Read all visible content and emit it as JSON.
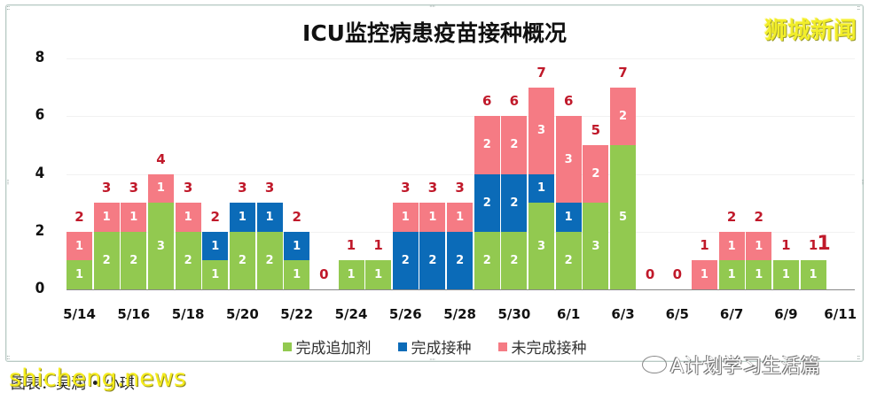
{
  "header": {
    "title": "ICU监控病患疫苗接种概况",
    "brand": "狮城新闻"
  },
  "legend": [
    {
      "label": "完成追加剂",
      "color": "#92c950"
    },
    {
      "label": "完成接种",
      "color": "#0b6bb8"
    },
    {
      "label": "未完成接种",
      "color": "#f57b84"
    }
  ],
  "footer": {
    "source": "图表：吴润 • 小琪",
    "watermark": "shicheng.news",
    "account": "A计划学习生活篇"
  },
  "colors": {
    "booster": "#92c950",
    "full": "#0b6bb8",
    "incomplete": "#f57b84",
    "total_label": "#c0192a"
  },
  "chart_data": {
    "type": "bar",
    "stacked": true,
    "title": "ICU监控病患疫苗接种概况",
    "xlabel": "",
    "ylabel": "",
    "ylim": [
      0,
      8
    ],
    "yticks": [
      0,
      2,
      4,
      6,
      8
    ],
    "xtick_labels": [
      "5/14",
      "5/16",
      "5/18",
      "5/20",
      "5/22",
      "5/24",
      "5/26",
      "5/28",
      "5/30",
      "6/1",
      "6/3",
      "6/5",
      "6/7",
      "6/9",
      "6/11"
    ],
    "legend_position": "bottom",
    "grid": true,
    "categories": [
      "5/14",
      "5/15",
      "5/16",
      "5/17",
      "5/18",
      "5/19",
      "5/20",
      "5/21",
      "5/22",
      "5/23",
      "5/24",
      "5/25",
      "5/26",
      "5/27",
      "5/28",
      "5/29",
      "5/30",
      "5/31",
      "6/1",
      "6/2",
      "6/3",
      "6/4",
      "6/5",
      "6/6",
      "6/7",
      "6/8",
      "6/9",
      "6/10",
      "6/11"
    ],
    "series": [
      {
        "name": "完成追加剂",
        "values": [
          1,
          2,
          2,
          3,
          2,
          1,
          2,
          2,
          1,
          0,
          1,
          1,
          0,
          0,
          0,
          2,
          2,
          3,
          2,
          3,
          5,
          0,
          0,
          0,
          1,
          1,
          1,
          1,
          0
        ]
      },
      {
        "name": "完成接种",
        "values": [
          0,
          0,
          0,
          0,
          0,
          1,
          1,
          1,
          1,
          0,
          0,
          0,
          2,
          2,
          2,
          2,
          2,
          1,
          1,
          0,
          0,
          0,
          0,
          0,
          0,
          0,
          0,
          0,
          0
        ]
      },
      {
        "name": "未完成接种",
        "values": [
          1,
          1,
          1,
          1,
          1,
          0,
          0,
          0,
          0,
          0,
          0,
          0,
          1,
          1,
          1,
          2,
          2,
          3,
          3,
          2,
          2,
          0,
          0,
          1,
          1,
          1,
          0,
          0,
          0
        ]
      }
    ],
    "totals": [
      2,
      3,
      3,
      4,
      3,
      2,
      3,
      3,
      2,
      0,
      1,
      1,
      3,
      3,
      3,
      6,
      6,
      7,
      6,
      5,
      7,
      0,
      0,
      1,
      2,
      2,
      1,
      1,
      null
    ]
  }
}
